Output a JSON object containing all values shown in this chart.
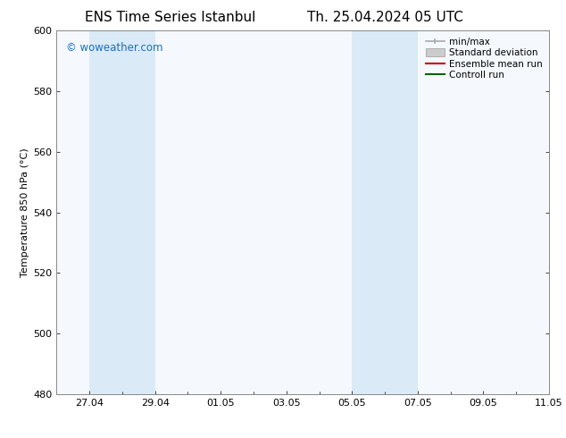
{
  "title1": "ENS Time Series Istanbul",
  "title2": "Th. 25.04.2024 05 UTC",
  "ylabel": "Temperature 850 hPa (°C)",
  "xlim": [
    0,
    15
  ],
  "ylim": [
    480,
    600
  ],
  "yticks": [
    480,
    500,
    520,
    540,
    560,
    580,
    600
  ],
  "xtick_labels": [
    "27.04",
    "29.04",
    "01.05",
    "03.05",
    "05.05",
    "07.05",
    "09.05",
    "11.05"
  ],
  "xtick_positions": [
    1,
    3,
    5,
    7,
    9,
    11,
    13,
    15
  ],
  "shaded_bands": [
    {
      "xmin": 1,
      "xmax": 3,
      "color": "#daeaf7"
    },
    {
      "xmin": 9,
      "xmax": 11,
      "color": "#daeaf7"
    }
  ],
  "watermark_text": "© woweather.com",
  "watermark_color": "#1a6fc4",
  "bg_color": "#ffffff",
  "plot_bg_color": "#f5f9fd",
  "legend_items": [
    {
      "label": "min/max",
      "color": "#aaaaaa",
      "lw": 1.5
    },
    {
      "label": "Standard deviation",
      "color": "#cccccc",
      "lw": 6
    },
    {
      "label": "Ensemble mean run",
      "color": "#cc0000",
      "lw": 1.5
    },
    {
      "label": "Controll run",
      "color": "#006400",
      "lw": 1.5
    }
  ],
  "font_family": "DejaVu Sans",
  "title_fontsize": 11,
  "axis_fontsize": 8,
  "tick_fontsize": 8,
  "legend_fontsize": 7.5
}
